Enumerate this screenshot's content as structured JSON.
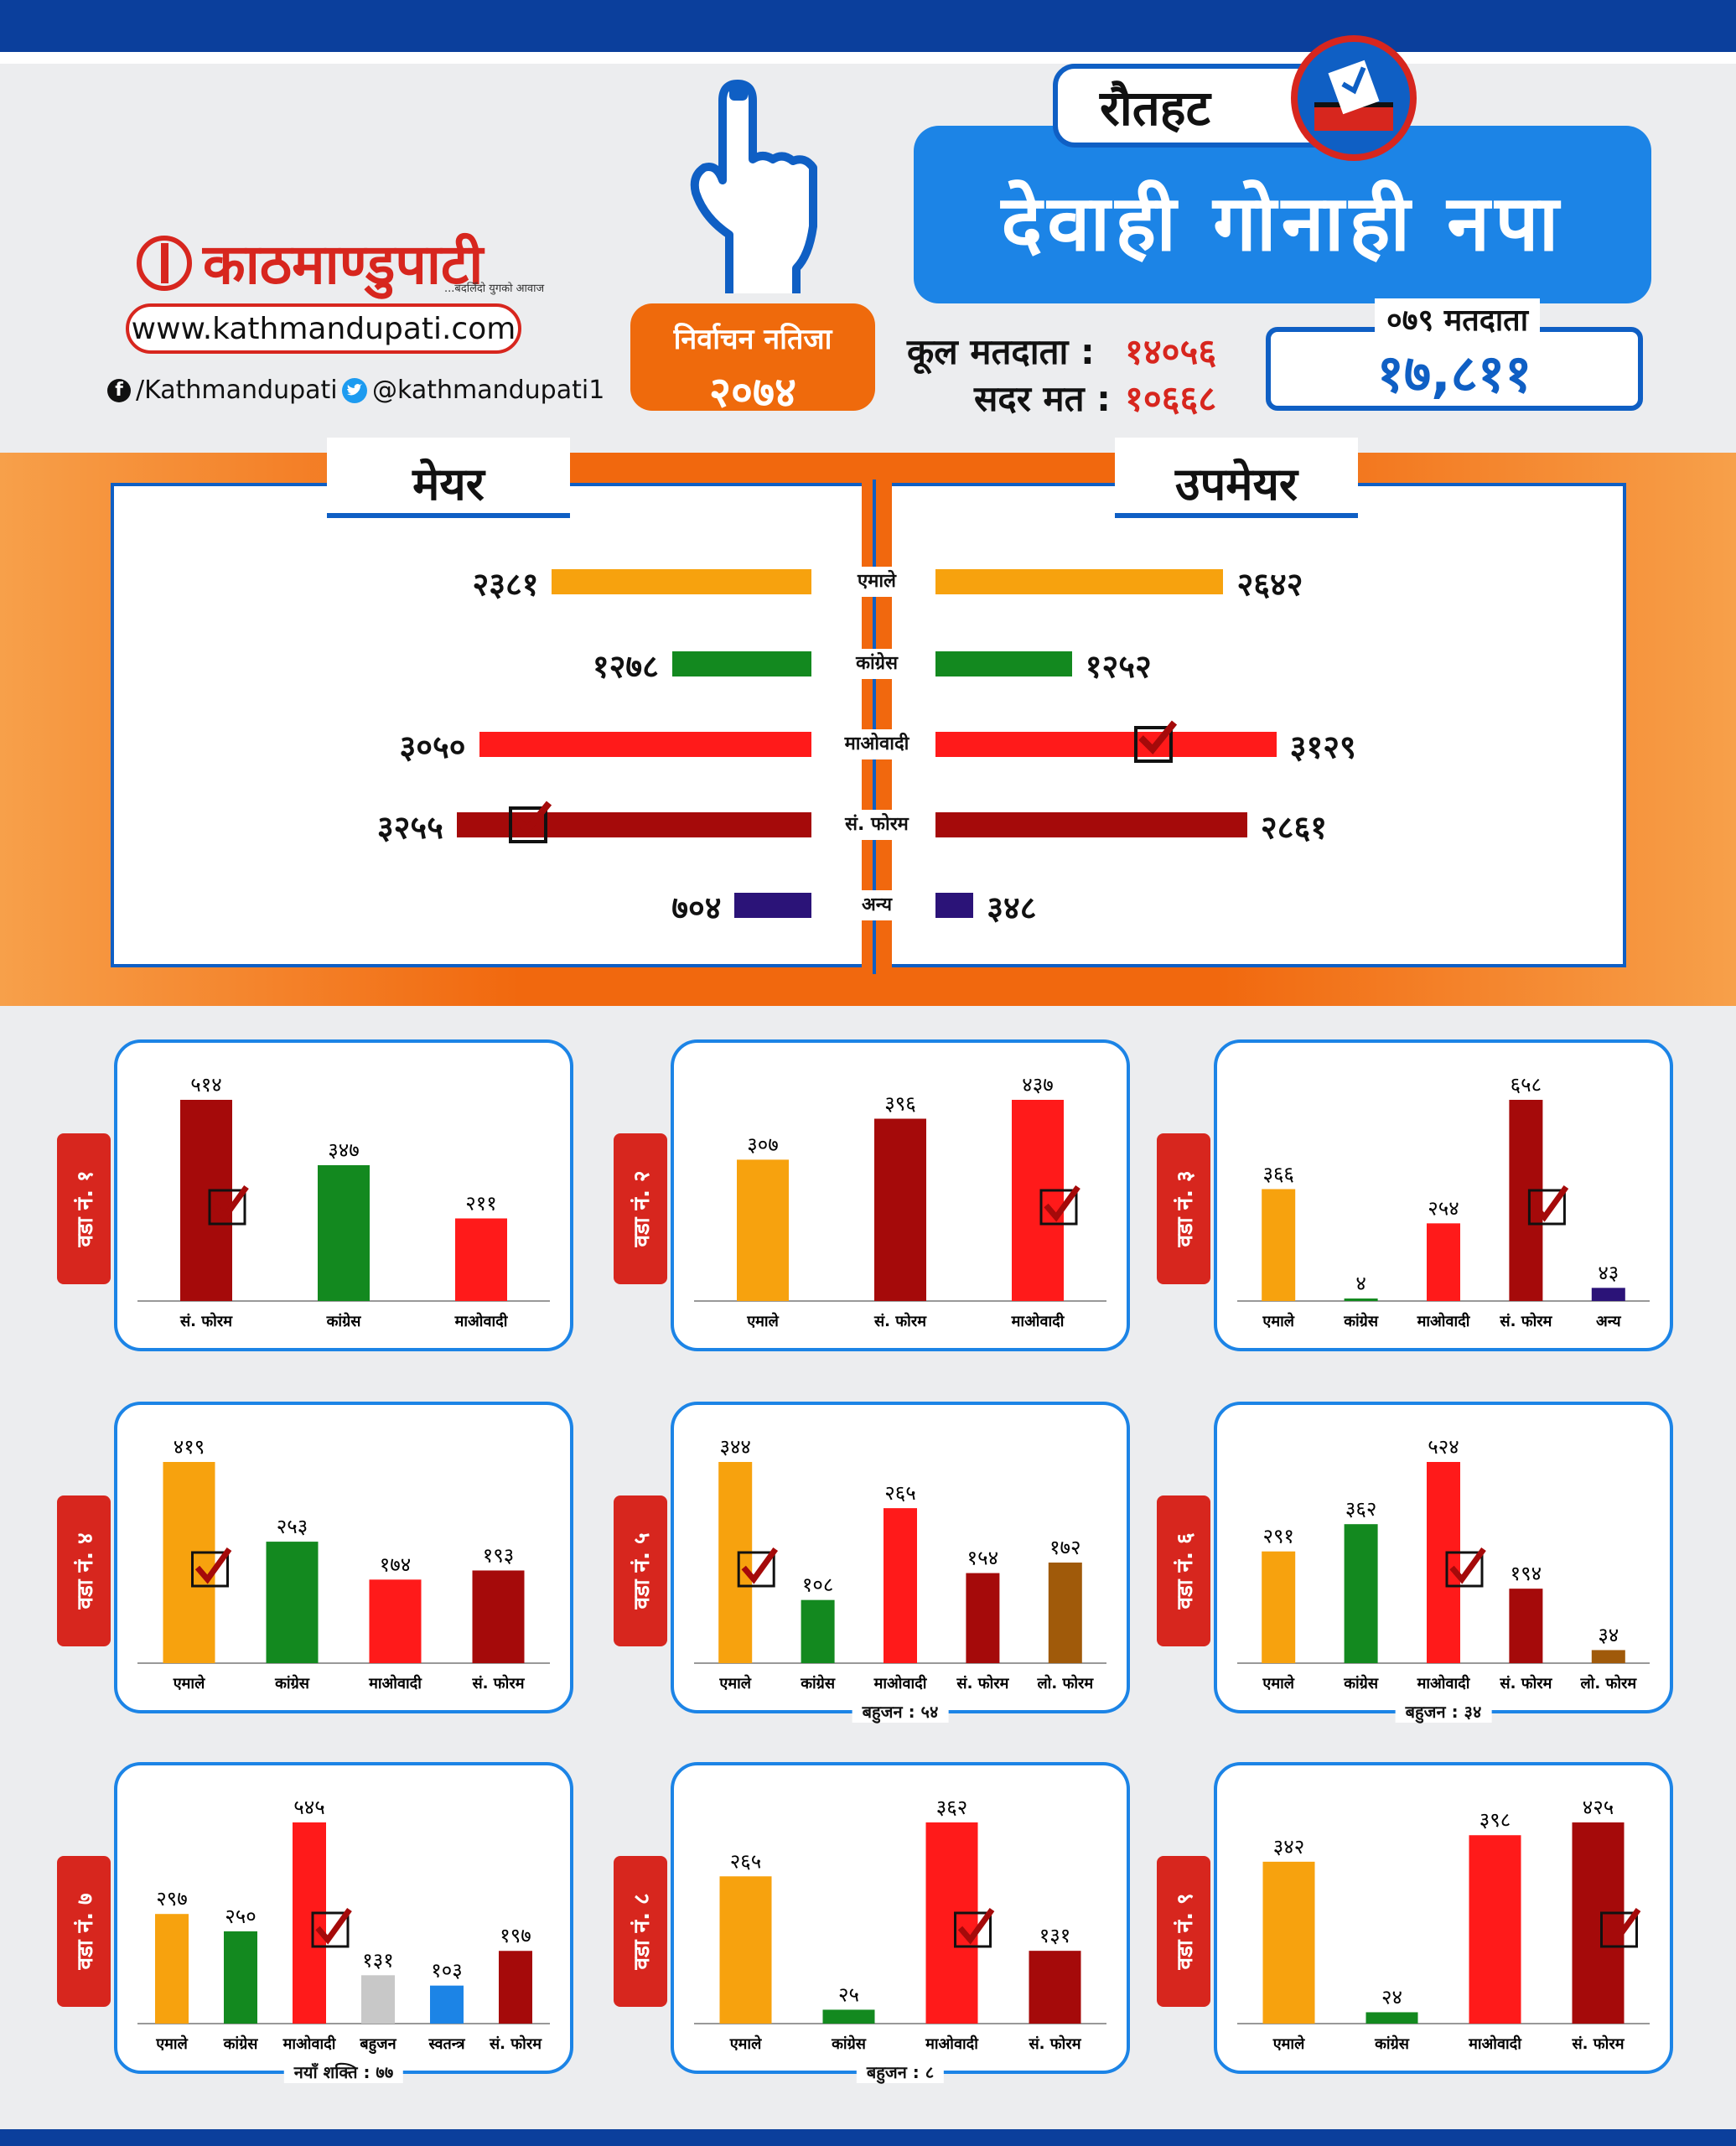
{
  "brand": {
    "logo_text": "काठमाण्डुपाटी",
    "tagline": "...बदलिँदो युगको आवाज",
    "website": "www.kathmandupati.com",
    "facebook": "/Kathmandupati",
    "twitter": "@kathmandupati1"
  },
  "election": {
    "label": "निर्वाचन नतिजा",
    "year": "२०७४",
    "district": "रौतहट",
    "municipality": "देवाही गोनाही नपा",
    "total_voters_label": "कूल मतदाता :",
    "total_voters": "१४०५६",
    "valid_votes_label": "सदर मत :",
    "valid_votes": "१०६६८",
    "voters_079_label": "०७९ मतदाता",
    "voters_079": "१७,८११"
  },
  "colors": {
    "एमाले": "#f7a20e",
    "कांग्रेस": "#13891f",
    "माओवादी": "#ff1a1a",
    "सं. फोरम": "#a50a0a",
    "अन्य": "#2b1378",
    "लो. फोरम": "#a05a0a",
    "बहुजन": "#c8c8c8",
    "स्वतन्त्र": "#1c84e6"
  },
  "chart_data": [
    {
      "type": "bar",
      "title": "",
      "panels": [
        "मेयर",
        "उपमेयर"
      ],
      "categories": [
        "एमाले",
        "कांग्रेस",
        "माओवादी",
        "सं. फोरम",
        "अन्य"
      ],
      "series": [
        {
          "name": "मेयर",
          "values": [
            2381,
            1278,
            3050,
            3255,
            704
          ],
          "labels": [
            "२३८१",
            "१२७८",
            "३०५०",
            "३२५५",
            "७०४"
          ],
          "winner": "सं. फोरम"
        },
        {
          "name": "उपमेयर",
          "values": [
            2642,
            1252,
            3129,
            2861,
            348
          ],
          "labels": [
            "२६४२",
            "१२५२",
            "३१२९",
            "२८६१",
            "३४८"
          ],
          "winner": "माओवादी"
        }
      ]
    },
    {
      "type": "bar",
      "ward": "वडा नं. १",
      "categories": [
        "सं. फोरम",
        "कांग्रेस",
        "माओवादी"
      ],
      "values": [
        514,
        347,
        211
      ],
      "labels": [
        "५१४",
        "३४७",
        "२११"
      ],
      "winner": "सं. फोरम",
      "footnote": ""
    },
    {
      "type": "bar",
      "ward": "वडा नं. २",
      "categories": [
        "एमाले",
        "सं. फोरम",
        "माओवादी"
      ],
      "values": [
        307,
        396,
        437
      ],
      "labels": [
        "३०७",
        "३९६",
        "४३७"
      ],
      "winner": "माओवादी",
      "footnote": ""
    },
    {
      "type": "bar",
      "ward": "वडा नं. ३",
      "categories": [
        "एमाले",
        "कांग्रेस",
        "माओवादी",
        "सं. फोरम",
        "अन्य"
      ],
      "values": [
        366,
        4,
        254,
        658,
        43
      ],
      "labels": [
        "३६६",
        "४",
        "२५४",
        "६५८",
        "४३"
      ],
      "winner": "सं. फोरम",
      "footnote": ""
    },
    {
      "type": "bar",
      "ward": "वडा नं. ४",
      "categories": [
        "एमाले",
        "कांग्रेस",
        "माओवादी",
        "सं. फोरम"
      ],
      "values": [
        419,
        253,
        174,
        193
      ],
      "labels": [
        "४१९",
        "२५३",
        "१७४",
        "१९३"
      ],
      "winner": "एमाले",
      "footnote": ""
    },
    {
      "type": "bar",
      "ward": "वडा नं. ५",
      "categories": [
        "एमाले",
        "कांग्रेस",
        "माओवादी",
        "सं. फोरम",
        "लो. फोरम"
      ],
      "values": [
        344,
        108,
        265,
        154,
        172
      ],
      "labels": [
        "३४४",
        "१०८",
        "२६५",
        "१५४",
        "१७२"
      ],
      "winner": "एमाले",
      "footnote": "बहुजन : ५४"
    },
    {
      "type": "bar",
      "ward": "वडा नं. ६",
      "categories": [
        "एमाले",
        "कांग्रेस",
        "माओवादी",
        "सं. फोरम",
        "लो. फोरम"
      ],
      "values": [
        291,
        362,
        524,
        194,
        34
      ],
      "labels": [
        "२९१",
        "३६२",
        "५२४",
        "१९४",
        "३४"
      ],
      "winner": "माओवादी",
      "footnote": "बहुजन : ३४"
    },
    {
      "type": "bar",
      "ward": "वडा नं. ७",
      "categories": [
        "एमाले",
        "कांग्रेस",
        "माओवादी",
        "बहुजन",
        "स्वतन्त्र",
        "सं. फोरम"
      ],
      "values": [
        297,
        250,
        545,
        131,
        103,
        197
      ],
      "labels": [
        "२९७",
        "२५०",
        "५४५",
        "१३१",
        "१०३",
        "१९७"
      ],
      "winner": "माओवादी",
      "footnote": "नयाँ शक्ति : ७७"
    },
    {
      "type": "bar",
      "ward": "वडा नं. ८",
      "categories": [
        "एमाले",
        "कांग्रेस",
        "माओवादी",
        "सं. फोरम"
      ],
      "values": [
        265,
        25,
        362,
        131
      ],
      "labels": [
        "२६५",
        "२५",
        "३६२",
        "१३१"
      ],
      "winner": "माओवादी",
      "footnote": "बहुजन : ८"
    },
    {
      "type": "bar",
      "ward": "वडा नं. ९",
      "categories": [
        "एमाले",
        "कांग्रेस",
        "माओवादी",
        "सं. फोरम"
      ],
      "values": [
        342,
        24,
        398,
        425
      ],
      "labels": [
        "३४२",
        "२४",
        "३९८",
        "४२५"
      ],
      "winner": "सं. फोरम",
      "footnote": ""
    }
  ]
}
